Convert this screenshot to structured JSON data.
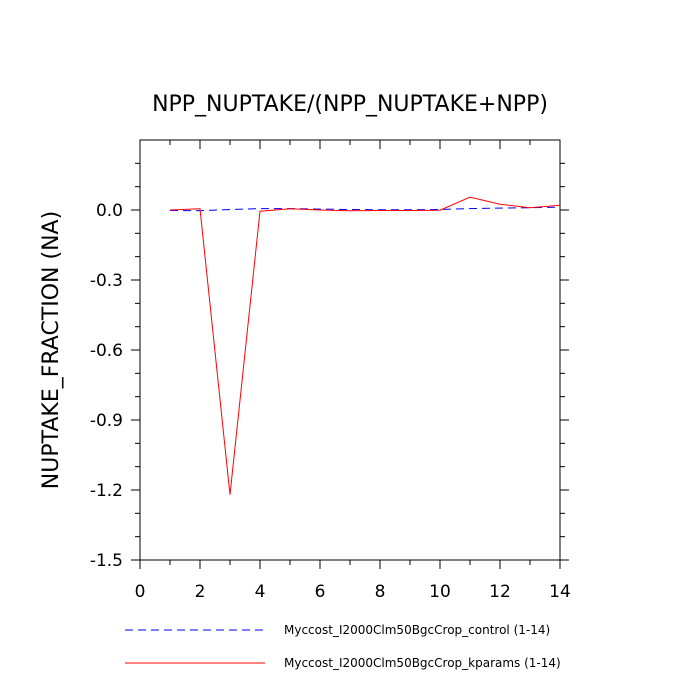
{
  "chart_data": {
    "type": "line",
    "title": "NPP_NUPTAKE/(NPP_NUPTAKE+NPP)",
    "xlabel": "",
    "ylabel": "NUPTAKE_FRACTION  (NA)",
    "xlim": [
      0,
      14
    ],
    "ylim": [
      -1.5,
      0.3
    ],
    "xticks": [
      0,
      2,
      4,
      6,
      8,
      10,
      12,
      14
    ],
    "xtick_labels": [
      "0",
      "2",
      "4",
      "6",
      "8",
      "10",
      "12",
      "14"
    ],
    "yticks": [
      -1.5,
      -1.2,
      -0.9,
      -0.6,
      -0.3,
      0.0
    ],
    "ytick_labels": [
      "-1.5",
      "-1.2",
      "-0.9",
      "-0.6",
      "-0.3",
      "0.0"
    ],
    "grid": false,
    "legend_position": "bottom",
    "series": [
      {
        "name": "Myccost_I2000Clm50BgcCrop_control (1-14)",
        "color": "#0000ff",
        "dash": "dashed",
        "x": [
          1,
          2,
          3,
          4,
          5,
          6,
          7,
          8,
          9,
          10,
          11,
          12,
          13,
          14
        ],
        "y": [
          -0.002,
          -0.003,
          0.002,
          0.006,
          0.006,
          0.004,
          0.002,
          0.001,
          0.001,
          0.002,
          0.006,
          0.008,
          0.01,
          0.012
        ]
      },
      {
        "name": "Myccost_I2000Clm50BgcCrop_kparams (1-14)",
        "color": "#ff0000",
        "dash": "solid",
        "x": [
          1,
          2,
          3,
          4,
          5,
          6,
          7,
          8,
          9,
          10,
          11,
          12,
          13,
          14
        ],
        "y": [
          0.0,
          0.005,
          -1.22,
          -0.005,
          0.005,
          0.0,
          -0.003,
          -0.002,
          -0.002,
          -0.001,
          0.055,
          0.025,
          0.01,
          0.02
        ]
      }
    ]
  }
}
